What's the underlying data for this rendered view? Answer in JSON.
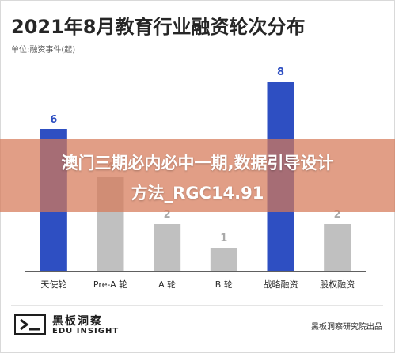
{
  "title": "2021年8月教育行业融资轮次分布",
  "unit": "单位:融资事件(起)",
  "chart_data": {
    "type": "bar",
    "categories": [
      "天使轮",
      "Pre-A 轮",
      "A 轮",
      "B 轮",
      "战略融资",
      "股权融资"
    ],
    "values": [
      6,
      4,
      2,
      1,
      8,
      2
    ],
    "title": "2021年8月教育行业融资轮次分布",
    "xlabel": "",
    "ylabel": "单位:融资事件(起)",
    "ylim": [
      0,
      8
    ],
    "grid": false,
    "colors": {
      "highlight": "#2e4fc2",
      "normal": "#c0c0c0",
      "highlight_label": "#2e4fc2",
      "normal_label": "#a9a9a9"
    },
    "highlight_categories": [
      "天使轮",
      "战略融资"
    ]
  },
  "footer": {
    "brand_cn": "黑板洞察",
    "brand_en": "EDU INSIGHT",
    "source": "黑板洞察研究院出品"
  },
  "watermark": {
    "line1": "澳门三期必内必中一期,数据引导设计",
    "line2": "方法_RGC14.91"
  }
}
